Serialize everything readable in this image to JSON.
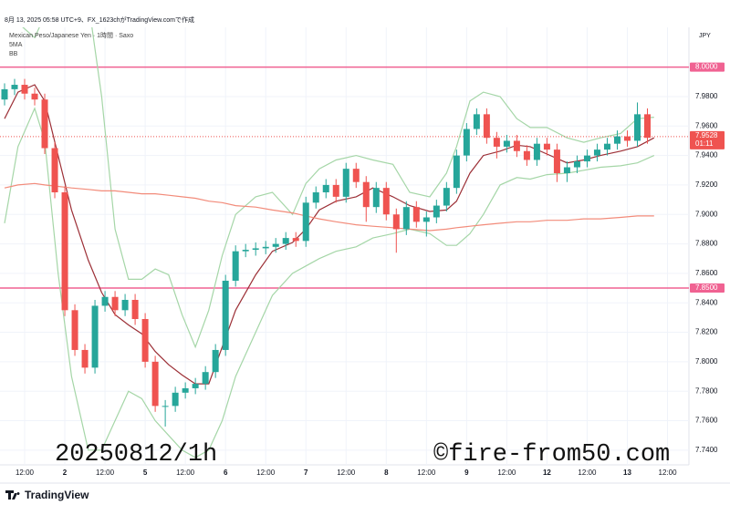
{
  "chart_data": {
    "type": "candlestick",
    "header": "8月 13, 2025 05:58 UTC+9、FX_1623chがTradingView.comで作成",
    "title": "Mexican Peso/Japanese Yen · 1時間 · Saxo",
    "indicators": [
      "5MA",
      "BB"
    ],
    "currency": "JPY",
    "watermark_left": "20250812/1h",
    "watermark_right": "©fire-from50.com",
    "brand": "TradingView",
    "up_color": "#26a69a",
    "down_color": "#ef5350",
    "x": [
      0,
      3,
      6,
      9,
      12,
      15,
      18,
      21,
      24,
      27,
      30,
      33,
      36,
      39,
      42,
      45,
      48,
      51,
      54,
      57,
      60,
      63,
      66,
      69,
      72,
      75,
      78,
      81,
      84,
      87,
      90,
      93,
      96,
      99,
      102,
      105,
      108,
      111,
      114,
      117,
      120,
      123,
      126,
      129,
      132,
      135,
      138,
      141,
      144,
      147,
      150,
      153,
      156,
      159,
      162,
      165,
      168,
      171,
      174,
      177,
      180,
      183,
      186,
      189,
      192
    ],
    "open": [
      7.978,
      7.985,
      7.988,
      7.982,
      7.978,
      7.945,
      7.915,
      7.835,
      7.808,
      7.796,
      7.838,
      7.844,
      7.835,
      7.842,
      7.829,
      7.8,
      7.77,
      7.77,
      7.779,
      7.782,
      7.785,
      7.793,
      7.808,
      7.855,
      7.875,
      7.876,
      7.877,
      7.878,
      7.88,
      7.884,
      7.882,
      7.908,
      7.915,
      7.92,
      7.912,
      7.931,
      7.922,
      7.905,
      7.918,
      7.9,
      7.89,
      7.905,
      7.895,
      7.898,
      7.906,
      7.918,
      7.94,
      7.958,
      7.968,
      7.952,
      7.946,
      7.95,
      7.943,
      7.937,
      7.948,
      7.944,
      7.928,
      7.932,
      7.936,
      7.94,
      7.944,
      7.948,
      7.953,
      7.95,
      7.968
    ],
    "high": [
      7.989,
      7.992,
      7.992,
      7.986,
      7.982,
      7.949,
      7.919,
      7.839,
      7.812,
      7.842,
      7.848,
      7.848,
      7.846,
      7.846,
      7.833,
      7.804,
      7.774,
      7.783,
      7.786,
      7.789,
      7.797,
      7.812,
      7.859,
      7.879,
      7.88,
      7.881,
      7.882,
      7.884,
      7.888,
      7.888,
      7.912,
      7.919,
      7.924,
      7.924,
      7.935,
      7.935,
      7.926,
      7.922,
      7.922,
      7.904,
      7.909,
      7.909,
      7.902,
      7.91,
      7.922,
      7.944,
      7.962,
      7.972,
      7.972,
      7.956,
      7.954,
      7.954,
      7.947,
      7.952,
      7.952,
      7.948,
      7.936,
      7.94,
      7.944,
      7.948,
      7.952,
      7.957,
      7.957,
      7.976,
      7.972
    ],
    "low": [
      7.974,
      7.981,
      7.978,
      7.974,
      7.941,
      7.911,
      7.831,
      7.804,
      7.792,
      7.792,
      7.834,
      7.831,
      7.831,
      7.825,
      7.796,
      7.766,
      7.756,
      7.766,
      7.775,
      7.778,
      7.781,
      7.789,
      7.804,
      7.851,
      7.871,
      7.872,
      7.873,
      7.874,
      7.876,
      7.878,
      7.878,
      7.904,
      7.911,
      7.908,
      7.908,
      7.918,
      7.895,
      7.901,
      7.896,
      7.874,
      7.886,
      7.891,
      7.885,
      7.894,
      7.902,
      7.914,
      7.936,
      7.954,
      7.948,
      7.938,
      7.942,
      7.939,
      7.933,
      7.933,
      7.94,
      7.922,
      7.922,
      7.928,
      7.932,
      7.936,
      7.94,
      7.944,
      7.946,
      7.946,
      7.948
    ],
    "close": [
      7.985,
      7.988,
      7.982,
      7.978,
      7.945,
      7.915,
      7.835,
      7.808,
      7.796,
      7.838,
      7.844,
      7.835,
      7.842,
      7.829,
      7.8,
      7.77,
      7.77,
      7.779,
      7.782,
      7.785,
      7.793,
      7.808,
      7.855,
      7.875,
      7.876,
      7.877,
      7.878,
      7.88,
      7.884,
      7.882,
      7.908,
      7.915,
      7.92,
      7.912,
      7.931,
      7.922,
      7.905,
      7.918,
      7.9,
      7.89,
      7.905,
      7.895,
      7.898,
      7.906,
      7.918,
      7.94,
      7.958,
      7.968,
      7.952,
      7.946,
      7.95,
      7.943,
      7.937,
      7.948,
      7.944,
      7.928,
      7.932,
      7.936,
      7.94,
      7.944,
      7.948,
      7.953,
      7.95,
      7.968,
      7.952
    ],
    "overlays": {
      "x": [
        0,
        4,
        9,
        12,
        16,
        20,
        25,
        29,
        33,
        37,
        41,
        45,
        49,
        53,
        57,
        61,
        65,
        69,
        75,
        80,
        86,
        90,
        94,
        99,
        105,
        110,
        116,
        121,
        127,
        132,
        135,
        139,
        143,
        148,
        153,
        157,
        162,
        168,
        173,
        178,
        184,
        189,
        194
      ],
      "series": [
        {
          "color": "#9c2f36",
          "values": [
            7.965,
            7.983,
            7.988,
            7.977,
            7.94,
            7.903,
            7.869,
            7.847,
            7.832,
            7.825,
            7.819,
            7.807,
            7.798,
            7.791,
            7.785,
            7.785,
            7.81,
            7.835,
            7.859,
            7.875,
            7.881,
            7.89,
            7.903,
            7.909,
            7.912,
            7.918,
            7.912,
            7.906,
            7.902,
            7.903,
            7.909,
            7.928,
            7.94,
            7.943,
            7.947,
            7.946,
            7.941,
            7.935,
            7.937,
            7.94,
            7.943,
            7.946,
            7.952
          ]
        },
        {
          "color": "#a5d6a7",
          "values": [
            8.03,
            8.03,
            8.02,
            8.035,
            8.06,
            8.07,
            8.045,
            7.98,
            7.89,
            7.856,
            7.856,
            7.863,
            7.859,
            7.832,
            7.81,
            7.835,
            7.872,
            7.9,
            7.912,
            7.915,
            7.9,
            7.921,
            7.931,
            7.937,
            7.94,
            7.937,
            7.934,
            7.915,
            7.912,
            7.928,
            7.946,
            7.977,
            7.983,
            7.98,
            7.965,
            7.959,
            7.959,
            7.952,
            7.949,
            7.952,
            7.955,
            7.965,
            7.966
          ]
        },
        {
          "color": "#a5d6a7",
          "values": [
            7.894,
            7.946,
            7.972,
            7.95,
            7.86,
            7.79,
            7.74,
            7.74,
            7.76,
            7.78,
            7.775,
            7.76,
            7.75,
            7.74,
            7.735,
            7.74,
            7.76,
            7.79,
            7.82,
            7.845,
            7.86,
            7.865,
            7.87,
            7.875,
            7.878,
            7.884,
            7.887,
            7.89,
            7.887,
            7.879,
            7.879,
            7.887,
            7.9,
            7.92,
            7.925,
            7.924,
            7.927,
            7.928,
            7.93,
            7.932,
            7.933,
            7.935,
            7.94
          ]
        },
        {
          "color": "#f28b7a",
          "values": [
            7.918,
            7.92,
            7.921,
            7.92,
            7.919,
            7.918,
            7.917,
            7.916,
            7.916,
            7.915,
            7.914,
            7.914,
            7.913,
            7.912,
            7.911,
            7.909,
            7.908,
            7.906,
            7.905,
            7.903,
            7.901,
            7.899,
            7.897,
            7.895,
            7.893,
            7.892,
            7.891,
            7.89,
            7.889,
            7.89,
            7.891,
            7.892,
            7.893,
            7.894,
            7.895,
            7.895,
            7.896,
            7.896,
            7.897,
            7.897,
            7.898,
            7.899,
            7.899
          ]
        }
      ]
    },
    "hlines": [
      {
        "value": 8.0,
        "label": "8.0000",
        "color": "#f06292"
      },
      {
        "value": 7.85,
        "label": "7.8500",
        "color": "#f06292"
      }
    ],
    "last_price": {
      "value": 7.9528,
      "label": "7.9528",
      "timer": "01:11",
      "color": "#ef5350"
    },
    "xlim": [
      -1.36,
      204.4
    ],
    "ylim": [
      7.73,
      8.027
    ],
    "xticks": [
      {
        "value": 6,
        "label": "12:00"
      },
      {
        "value": 18,
        "label": "2"
      },
      {
        "value": 30,
        "label": "12:00"
      },
      {
        "value": 42,
        "label": "5"
      },
      {
        "value": 54,
        "label": "12:00"
      },
      {
        "value": 66,
        "label": "6"
      },
      {
        "value": 78,
        "label": "12:00"
      },
      {
        "value": 90,
        "label": "7"
      },
      {
        "value": 102,
        "label": "12:00"
      },
      {
        "value": 114,
        "label": "8"
      },
      {
        "value": 126,
        "label": "12:00"
      },
      {
        "value": 138,
        "label": "9"
      },
      {
        "value": 150,
        "label": "12:00"
      },
      {
        "value": 162,
        "label": "12"
      },
      {
        "value": 174,
        "label": "12:00"
      },
      {
        "value": 186,
        "label": "13"
      },
      {
        "value": 198,
        "label": "12:00"
      }
    ],
    "yticks": [
      {
        "value": 7.74,
        "label": "7.7400"
      },
      {
        "value": 7.76,
        "label": "7.7600"
      },
      {
        "value": 7.78,
        "label": "7.7800"
      },
      {
        "value": 7.8,
        "label": "7.8000"
      },
      {
        "value": 7.82,
        "label": "7.8200"
      },
      {
        "value": 7.84,
        "label": "7.8400"
      },
      {
        "value": 7.86,
        "label": "7.8600"
      },
      {
        "value": 7.88,
        "label": "7.8800"
      },
      {
        "value": 7.9,
        "label": "7.9000"
      },
      {
        "value": 7.92,
        "label": "7.9200"
      },
      {
        "value": 7.94,
        "label": "7.9400"
      },
      {
        "value": 7.96,
        "label": "7.9600"
      },
      {
        "value": 7.98,
        "label": "7.9800"
      }
    ],
    "grid": true
  }
}
